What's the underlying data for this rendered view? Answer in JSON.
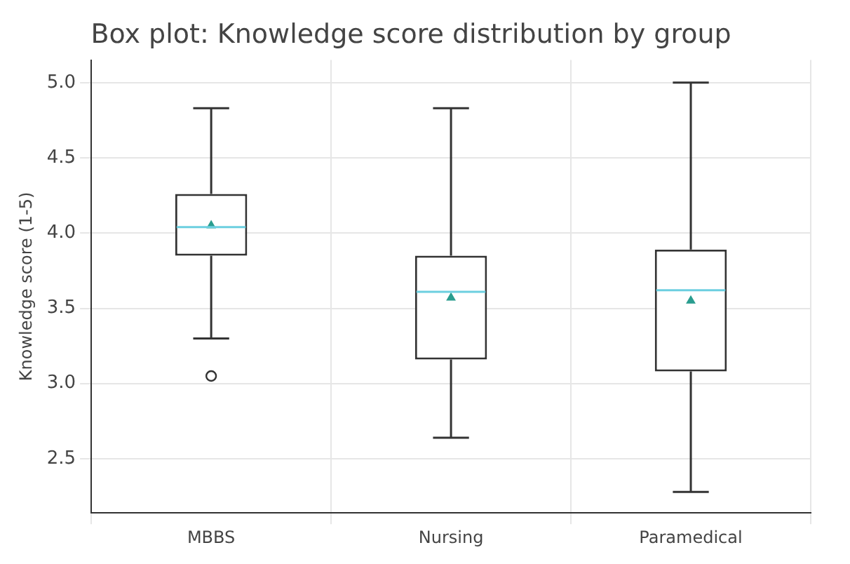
{
  "chart_data": {
    "type": "box",
    "title": "Box plot: Knowledge score distribution by group",
    "ylabel": "Knowledge score (1-5)",
    "categories": [
      "MBBS",
      "Nursing",
      "Paramedical"
    ],
    "boxes": [
      {
        "low": 3.3,
        "q1": 3.85,
        "median": 4.04,
        "q3": 4.26,
        "high": 4.83,
        "mean": 4.05,
        "outliers": [
          3.05
        ]
      },
      {
        "low": 2.64,
        "q1": 3.16,
        "median": 3.61,
        "q3": 3.85,
        "high": 4.83,
        "mean": 3.57
      },
      {
        "low": 2.28,
        "q1": 3.08,
        "median": 3.62,
        "q3": 3.89,
        "high": 5.0,
        "mean": 3.55
      }
    ],
    "ylim": [
      2.14,
      5.15
    ],
    "yticks": [
      2.5,
      {
        "value": 3,
        "label": "3.0"
      },
      3.5,
      {
        "value": 4,
        "label": "4.0"
      },
      4.5,
      {
        "value": 5,
        "label": "5.0"
      }
    ],
    "grid": true
  }
}
